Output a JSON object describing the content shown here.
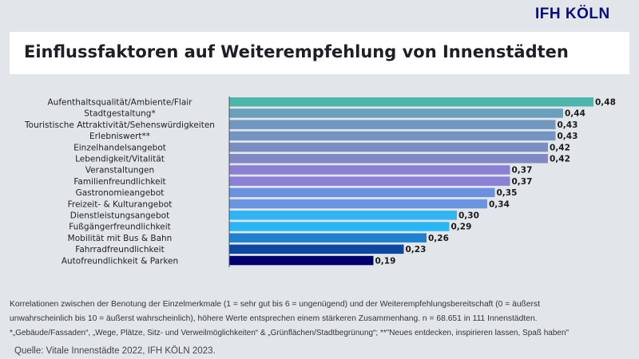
{
  "logo": "IFH KÖLN",
  "chart_data": {
    "type": "bar",
    "orientation": "horizontal",
    "title": "Einflussfaktoren auf Weiterempfehlung von Innenstädten",
    "categories": [
      "Aufenthaltsqualität/Ambiente/Flair",
      "Stadtgestaltung*",
      "Touristische Attraktivität/Sehenswürdigkeiten",
      "Erlebniswert**",
      "Einzelhandelsangebot",
      "Lebendigkeit/Vitalität",
      "Veranstaltungen",
      "Familienfreundlichkeit",
      "Gastronomieangebot",
      "Freizeit- & Kulturangebot",
      "Dienstleistungsangebot",
      "Fußgängerfreundlichkeit",
      "Mobilität mit Bus & Bahn",
      "Fahrradfreundlichkeit",
      "Autofreundlichkeit & Parken"
    ],
    "values": [
      0.48,
      0.44,
      0.43,
      0.43,
      0.42,
      0.42,
      0.37,
      0.37,
      0.35,
      0.34,
      0.3,
      0.29,
      0.26,
      0.23,
      0.19
    ],
    "labels": [
      "0,48",
      "0,44",
      "0,43",
      "0,43",
      "0,42",
      "0,42",
      "0,37",
      "0,37",
      "0,35",
      "0,34",
      "0,30",
      "0,29",
      "0,26",
      "0,23",
      "0,19"
    ],
    "colors": [
      "#4db6ac",
      "#6a9fbd",
      "#7097c0",
      "#7494c1",
      "#7a8fc1",
      "#8089c4",
      "#8a80d4",
      "#8a80d4",
      "#6a90e0",
      "#6a95e0",
      "#30b4f4",
      "#29b6f6",
      "#1e80d0",
      "#0d47a1",
      "#000070"
    ],
    "xlim": [
      0,
      0.48
    ],
    "grid": false
  },
  "notes": [
    "Korrelationen zwischen der Benotung der Einzelmerkmale (1 = sehr gut bis 6 = ungenügend) und der Weiterempfehlungsbereitschaft (0 = äußerst",
    "unwahrscheinlich bis 10 = äußerst wahrscheinlich), höhere Werte entsprechen einem stärkeren Zusammenhang. n = 68.651 in 111 Innenstädten.",
    "*„Gebäude/Fassaden“, „Wege, Plätze, Sitz- und Verweilmöglichkeiten“ & „Grünflächen/Stadtbegrünung“; **\"Neues entdecken, inspirieren lassen, Spaß haben\""
  ],
  "source": "Quelle: Vitale Innenstädte 2022, IFH KÖLN 2023."
}
